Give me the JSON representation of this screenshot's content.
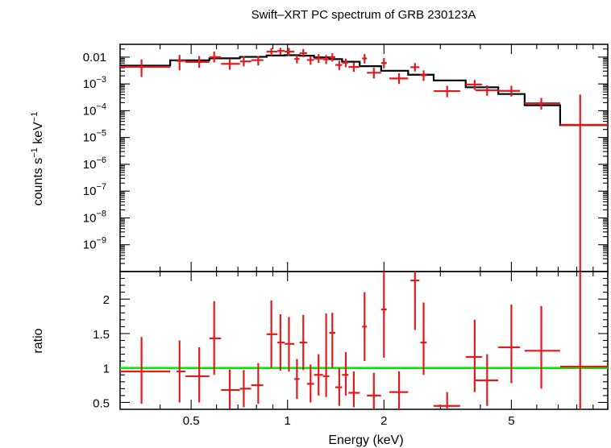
{
  "chart_data": {
    "type": "scatter",
    "title": "Swift–XRT PC spectrum of GRB 230123A",
    "xlabel": "Energy (keV)",
    "xscale": "log",
    "xlim": [
      0.3,
      10
    ],
    "x_ticks": [
      {
        "value": 0.5,
        "label": "0.5"
      },
      {
        "value": 1,
        "label": "1"
      },
      {
        "value": 2,
        "label": "2"
      },
      {
        "value": 5,
        "label": "5"
      }
    ],
    "colors": {
      "data": "#e31a1c",
      "model": "#000000",
      "unity_line": "#00ee00"
    },
    "panels": [
      {
        "name": "spectrum",
        "ylabel": "counts s⁻¹ keV⁻¹",
        "ylabel_parts": {
          "base1": "counts s",
          "sup1": "−1",
          "base2": " keV",
          "sup2": "−1"
        },
        "yscale": "log",
        "ylim": [
          1e-10,
          0.03
        ],
        "y_ticks": [
          {
            "value": 0.01,
            "base": "0.01",
            "exp": ""
          },
          {
            "value": 0.001,
            "base": "10",
            "exp": "−3"
          },
          {
            "value": 0.0001,
            "base": "10",
            "exp": "−4"
          },
          {
            "value": 1e-05,
            "base": "10",
            "exp": "−5"
          },
          {
            "value": 1e-06,
            "base": "10",
            "exp": "−6"
          },
          {
            "value": 1e-07,
            "base": "10",
            "exp": "−7"
          },
          {
            "value": 1e-08,
            "base": "10",
            "exp": "−8"
          },
          {
            "value": 1e-09,
            "base": "10",
            "exp": "−9"
          }
        ],
        "series": [
          {
            "style": "crosses",
            "points": [
              {
                "x": 0.35,
                "x_lo": 0.3,
                "x_hi": 0.43,
                "y": 0.0043,
                "y_lo": 0.0018,
                "y_hi": 0.0082
              },
              {
                "x": 0.46,
                "x_lo": 0.45,
                "x_hi": 0.48,
                "y": 0.0072,
                "y_lo": 0.0032,
                "y_hi": 0.012
              },
              {
                "x": 0.53,
                "x_lo": 0.48,
                "x_hi": 0.57,
                "y": 0.0066,
                "y_lo": 0.004,
                "y_hi": 0.011
              },
              {
                "x": 0.59,
                "x_lo": 0.57,
                "x_hi": 0.62,
                "y": 0.01,
                "y_lo": 0.0063,
                "y_hi": 0.016
              },
              {
                "x": 0.66,
                "x_lo": 0.62,
                "x_hi": 0.71,
                "y": 0.0056,
                "y_lo": 0.0034,
                "y_hi": 0.0082
              },
              {
                "x": 0.73,
                "x_lo": 0.71,
                "x_hi": 0.77,
                "y": 0.0069,
                "y_lo": 0.0045,
                "y_hi": 0.011
              },
              {
                "x": 0.81,
                "x_lo": 0.77,
                "x_hi": 0.84,
                "y": 0.0077,
                "y_lo": 0.0049,
                "y_hi": 0.011
              },
              {
                "x": 0.89,
                "x_lo": 0.86,
                "x_hi": 0.93,
                "y": 0.016,
                "y_lo": 0.011,
                "y_hi": 0.022
              },
              {
                "x": 0.95,
                "x_lo": 0.93,
                "x_hi": 0.98,
                "y": 0.017,
                "y_lo": 0.012,
                "y_hi": 0.022
              },
              {
                "x": 1.01,
                "x_lo": 0.98,
                "x_hi": 1.05,
                "y": 0.016,
                "y_lo": 0.011,
                "y_hi": 0.022
              },
              {
                "x": 1.07,
                "x_lo": 1.05,
                "x_hi": 1.09,
                "y": 0.0085,
                "y_lo": 0.0058,
                "y_hi": 0.012
              },
              {
                "x": 1.12,
                "x_lo": 1.09,
                "x_hi": 1.15,
                "y": 0.014,
                "y_lo": 0.0099,
                "y_hi": 0.02
              },
              {
                "x": 1.18,
                "x_lo": 1.15,
                "x_hi": 1.21,
                "y": 0.0078,
                "y_lo": 0.0052,
                "y_hi": 0.011
              },
              {
                "x": 1.25,
                "x_lo": 1.21,
                "x_hi": 1.29,
                "y": 0.0088,
                "y_lo": 0.0061,
                "y_hi": 0.013
              },
              {
                "x": 1.32,
                "x_lo": 1.29,
                "x_hi": 1.35,
                "y": 0.0083,
                "y_lo": 0.0055,
                "y_hi": 0.012
              },
              {
                "x": 1.38,
                "x_lo": 1.35,
                "x_hi": 1.41,
                "y": 0.01,
                "y_lo": 0.0068,
                "y_hi": 0.014
              },
              {
                "x": 1.45,
                "x_lo": 1.41,
                "x_hi": 1.48,
                "y": 0.0051,
                "y_lo": 0.0033,
                "y_hi": 0.0073
              },
              {
                "x": 1.52,
                "x_lo": 1.48,
                "x_hi": 1.55,
                "y": 0.0062,
                "y_lo": 0.0042,
                "y_hi": 0.0088
              },
              {
                "x": 1.61,
                "x_lo": 1.55,
                "x_hi": 1.68,
                "y": 0.0043,
                "y_lo": 0.0028,
                "y_hi": 0.0064
              },
              {
                "x": 1.74,
                "x_lo": 1.71,
                "x_hi": 1.77,
                "y": 0.0089,
                "y_lo": 0.0058,
                "y_hi": 0.013
              },
              {
                "x": 1.86,
                "x_lo": 1.77,
                "x_hi": 1.96,
                "y": 0.0026,
                "y_lo": 0.0016,
                "y_hi": 0.004
              },
              {
                "x": 2.0,
                "x_lo": 1.96,
                "x_hi": 2.04,
                "y": 0.006,
                "y_lo": 0.0038,
                "y_hi": 0.0093
              },
              {
                "x": 2.23,
                "x_lo": 2.08,
                "x_hi": 2.38,
                "y": 0.0016,
                "y_lo": 0.001,
                "y_hi": 0.0025
              },
              {
                "x": 2.5,
                "x_lo": 2.42,
                "x_hi": 2.58,
                "y": 0.0042,
                "y_lo": 0.0029,
                "y_hi": 0.006
              },
              {
                "x": 2.66,
                "x_lo": 2.6,
                "x_hi": 2.72,
                "y": 0.0021,
                "y_lo": 0.0013,
                "y_hi": 0.0032
              },
              {
                "x": 3.15,
                "x_lo": 2.86,
                "x_hi": 3.46,
                "y": 0.00054,
                "y_lo": 0.00032,
                "y_hi": 0.00085
              },
              {
                "x": 3.84,
                "x_lo": 3.6,
                "x_hi": 4.05,
                "y": 0.00095,
                "y_lo": 0.0006,
                "y_hi": 0.0014
              },
              {
                "x": 4.2,
                "x_lo": 3.86,
                "x_hi": 4.55,
                "y": 0.00058,
                "y_lo": 0.00036,
                "y_hi": 0.00088
              },
              {
                "x": 5.0,
                "x_lo": 4.55,
                "x_hi": 5.32,
                "y": 0.00055,
                "y_lo": 0.00034,
                "y_hi": 0.00085
              },
              {
                "x": 6.2,
                "x_lo": 5.5,
                "x_hi": 7.1,
                "y": 0.00019,
                "y_lo": 0.00011,
                "y_hi": 0.0003
              },
              {
                "x": 8.2,
                "x_lo": 7.1,
                "x_hi": 10.0,
                "y": 3e-05,
                "y_lo": 1e-10,
                "y_hi": 0.0004
              }
            ]
          },
          {
            "style": "step",
            "steps": [
              {
                "x_lo": 0.3,
                "x_hi": 0.43,
                "y": 0.0048
              },
              {
                "x_lo": 0.43,
                "x_hi": 0.57,
                "y": 0.0076
              },
              {
                "x_lo": 0.57,
                "x_hi": 0.71,
                "y": 0.009
              },
              {
                "x_lo": 0.71,
                "x_hi": 0.86,
                "y": 0.0102
              },
              {
                "x_lo": 0.86,
                "x_hi": 0.98,
                "y": 0.0115
              },
              {
                "x_lo": 0.98,
                "x_hi": 1.09,
                "y": 0.0118
              },
              {
                "x_lo": 1.09,
                "x_hi": 1.21,
                "y": 0.0113
              },
              {
                "x_lo": 1.21,
                "x_hi": 1.35,
                "y": 0.0098
              },
              {
                "x_lo": 1.35,
                "x_hi": 1.48,
                "y": 0.0084
              },
              {
                "x_lo": 1.48,
                "x_hi": 1.68,
                "y": 0.0067
              },
              {
                "x_lo": 1.68,
                "x_hi": 1.96,
                "y": 0.0046
              },
              {
                "x_lo": 1.96,
                "x_hi": 2.38,
                "y": 0.0031
              },
              {
                "x_lo": 2.38,
                "x_hi": 2.86,
                "y": 0.0022
              },
              {
                "x_lo": 2.86,
                "x_hi": 3.6,
                "y": 0.00135
              },
              {
                "x_lo": 3.6,
                "x_hi": 4.55,
                "y": 0.00075
              },
              {
                "x_lo": 4.55,
                "x_hi": 5.5,
                "y": 0.00042
              },
              {
                "x_lo": 5.5,
                "x_hi": 7.1,
                "y": 0.00016
              },
              {
                "x_lo": 7.1,
                "x_hi": 10.0,
                "y": 2.9e-05
              }
            ]
          }
        ]
      },
      {
        "name": "ratio",
        "ylabel": "ratio",
        "yscale": "linear",
        "ylim": [
          0.4,
          2.4
        ],
        "y_ticks": [
          {
            "value": 0.5,
            "label": "0.5"
          },
          {
            "value": 1,
            "label": "1"
          },
          {
            "value": 1.5,
            "label": "1.5"
          },
          {
            "value": 2,
            "label": "2"
          }
        ],
        "reference_line": 1,
        "series": [
          {
            "style": "crosses",
            "points": [
              {
                "x": 0.35,
                "x_lo": 0.3,
                "x_hi": 0.43,
                "y": 0.95,
                "y_lo": 0.48,
                "y_hi": 1.45
              },
              {
                "x": 0.46,
                "x_lo": 0.45,
                "x_hi": 0.48,
                "y": 0.95,
                "y_lo": 0.5,
                "y_hi": 1.4
              },
              {
                "x": 0.53,
                "x_lo": 0.48,
                "x_hi": 0.57,
                "y": 0.88,
                "y_lo": 0.5,
                "y_hi": 1.3
              },
              {
                "x": 0.59,
                "x_lo": 0.57,
                "x_hi": 0.62,
                "y": 1.43,
                "y_lo": 0.9,
                "y_hi": 1.97
              },
              {
                "x": 0.66,
                "x_lo": 0.62,
                "x_hi": 0.71,
                "y": 0.68,
                "y_lo": 0.41,
                "y_hi": 0.98
              },
              {
                "x": 0.73,
                "x_lo": 0.71,
                "x_hi": 0.77,
                "y": 0.7,
                "y_lo": 0.43,
                "y_hi": 0.97
              },
              {
                "x": 0.81,
                "x_lo": 0.77,
                "x_hi": 0.84,
                "y": 0.75,
                "y_lo": 0.48,
                "y_hi": 1.07
              },
              {
                "x": 0.89,
                "x_lo": 0.86,
                "x_hi": 0.93,
                "y": 1.49,
                "y_lo": 1.0,
                "y_hi": 1.98
              },
              {
                "x": 0.95,
                "x_lo": 0.93,
                "x_hi": 0.98,
                "y": 1.37,
                "y_lo": 0.96,
                "y_hi": 1.78
              },
              {
                "x": 1.01,
                "x_lo": 0.98,
                "x_hi": 1.05,
                "y": 1.35,
                "y_lo": 0.95,
                "y_hi": 1.74
              },
              {
                "x": 1.07,
                "x_lo": 1.05,
                "x_hi": 1.09,
                "y": 0.84,
                "y_lo": 0.55,
                "y_hi": 1.13
              },
              {
                "x": 1.12,
                "x_lo": 1.09,
                "x_hi": 1.15,
                "y": 1.37,
                "y_lo": 0.97,
                "y_hi": 1.77
              },
              {
                "x": 1.18,
                "x_lo": 1.15,
                "x_hi": 1.21,
                "y": 0.77,
                "y_lo": 0.5,
                "y_hi": 1.05
              },
              {
                "x": 1.25,
                "x_lo": 1.21,
                "x_hi": 1.29,
                "y": 0.9,
                "y_lo": 0.6,
                "y_hi": 1.2
              },
              {
                "x": 1.32,
                "x_lo": 1.29,
                "x_hi": 1.35,
                "y": 0.88,
                "y_lo": 0.58,
                "y_hi": 1.79
              },
              {
                "x": 1.38,
                "x_lo": 1.35,
                "x_hi": 1.41,
                "y": 1.51,
                "y_lo": 1.0,
                "y_hi": 1.8
              },
              {
                "x": 1.45,
                "x_lo": 1.41,
                "x_hi": 1.48,
                "y": 0.72,
                "y_lo": 0.45,
                "y_hi": 1.0
              },
              {
                "x": 1.52,
                "x_lo": 1.48,
                "x_hi": 1.55,
                "y": 0.9,
                "y_lo": 0.6,
                "y_hi": 1.23
              },
              {
                "x": 1.61,
                "x_lo": 1.55,
                "x_hi": 1.68,
                "y": 0.64,
                "y_lo": 0.43,
                "y_hi": 0.95
              },
              {
                "x": 1.74,
                "x_lo": 1.71,
                "x_hi": 1.77,
                "y": 1.6,
                "y_lo": 1.1,
                "y_hi": 2.1
              },
              {
                "x": 1.86,
                "x_lo": 1.77,
                "x_hi": 1.96,
                "y": 0.6,
                "y_lo": 0.4,
                "y_hi": 0.93
              },
              {
                "x": 2.0,
                "x_lo": 1.96,
                "x_hi": 2.04,
                "y": 1.85,
                "y_lo": 1.15,
                "y_hi": 2.4
              },
              {
                "x": 2.23,
                "x_lo": 2.08,
                "x_hi": 2.38,
                "y": 0.65,
                "y_lo": 0.4,
                "y_hi": 0.95
              },
              {
                "x": 2.5,
                "x_lo": 2.42,
                "x_hi": 2.58,
                "y": 2.27,
                "y_lo": 1.55,
                "y_hi": 2.4
              },
              {
                "x": 2.66,
                "x_lo": 2.6,
                "x_hi": 2.72,
                "y": 1.37,
                "y_lo": 0.9,
                "y_hi": 1.95
              },
              {
                "x": 3.15,
                "x_lo": 2.86,
                "x_hi": 3.46,
                "y": 0.45,
                "y_lo": 0.4,
                "y_hi": 0.65
              },
              {
                "x": 3.84,
                "x_lo": 3.6,
                "x_hi": 4.05,
                "y": 1.16,
                "y_lo": 0.65,
                "y_hi": 1.7
              },
              {
                "x": 4.2,
                "x_lo": 3.86,
                "x_hi": 4.55,
                "y": 0.82,
                "y_lo": 0.45,
                "y_hi": 1.2
              },
              {
                "x": 5.0,
                "x_lo": 4.55,
                "x_hi": 5.32,
                "y": 1.3,
                "y_lo": 0.78,
                "y_hi": 1.92
              },
              {
                "x": 6.2,
                "x_lo": 5.5,
                "x_hi": 7.1,
                "y": 1.25,
                "y_lo": 0.7,
                "y_hi": 1.9
              },
              {
                "x": 8.2,
                "x_lo": 7.1,
                "x_hi": 10.0,
                "y": 1.02,
                "y_lo": 0.4,
                "y_hi": 2.4
              }
            ]
          }
        ]
      }
    ]
  }
}
